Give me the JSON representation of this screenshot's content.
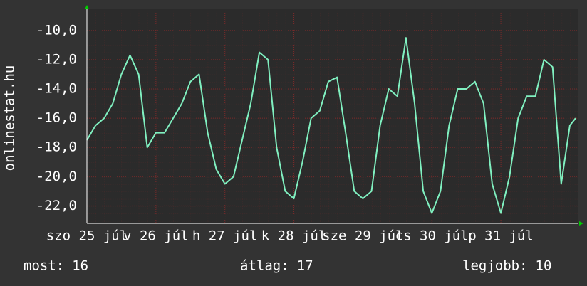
{
  "chart_data": {
    "type": "line",
    "y_label": "onlinestat.hu",
    "x": [
      0,
      3,
      6,
      9,
      12,
      15,
      18,
      21,
      24,
      27,
      30,
      33,
      36,
      39,
      42,
      45,
      48,
      51,
      54,
      57,
      60,
      63,
      66,
      69,
      72,
      75,
      78,
      81,
      84,
      87,
      90,
      93,
      96,
      99,
      102,
      105,
      108,
      111,
      114,
      117,
      120,
      123,
      126,
      129,
      132,
      135,
      138,
      141,
      144,
      147,
      150,
      153,
      156,
      159,
      162,
      165,
      168,
      170
    ],
    "values": [
      -17.5,
      -16.5,
      -16,
      -15,
      -13,
      -11.7,
      -13,
      -18,
      -17,
      -17,
      -16,
      -15,
      -13.5,
      -13,
      -17,
      -19.5,
      -20.5,
      -20,
      -17.5,
      -15,
      -11.5,
      -12,
      -18,
      -21,
      -21.5,
      -19,
      -16,
      -15.5,
      -13.5,
      -13.2,
      -17,
      -21,
      -21.5,
      -21,
      -16.5,
      -14,
      -14.5,
      -10.5,
      -15,
      -21,
      -22.5,
      -21,
      -16.5,
      -14,
      -14,
      -13.5,
      -15,
      -20.5,
      -22.5,
      -20,
      -16,
      -14.5,
      -14.5,
      -12,
      -12.5,
      -20.5,
      -16.5,
      -16
    ],
    "color": "#80f0c0",
    "xlim": [
      0,
      171
    ],
    "xticks": [
      {
        "value": 0,
        "label": "szo 25 júl"
      },
      {
        "value": 24,
        "label": "v 26 júl"
      },
      {
        "value": 48,
        "label": "h 27 júl"
      },
      {
        "value": 72,
        "label": "k 28 júl"
      },
      {
        "value": 96,
        "label": "sze 29 júl"
      },
      {
        "value": 120,
        "label": "cs 30 júl"
      },
      {
        "value": 144,
        "label": "p 31 júl"
      }
    ],
    "ylim": [
      -23.2,
      -8.5
    ],
    "yticks": [
      {
        "value": -10,
        "label": "-10,0"
      },
      {
        "value": -12,
        "label": "-12,0"
      },
      {
        "value": -14,
        "label": "-14,0"
      },
      {
        "value": -16,
        "label": "-16,0"
      },
      {
        "value": -18,
        "label": "-18,0"
      },
      {
        "value": -20,
        "label": "-20,0"
      },
      {
        "value": -22,
        "label": "-22,0"
      }
    ],
    "grid": true,
    "stats": [
      {
        "label": "most:",
        "value": 16
      },
      {
        "label": "átlag:",
        "value": 17
      },
      {
        "label": "legjobb:",
        "value": 10
      }
    ]
  }
}
